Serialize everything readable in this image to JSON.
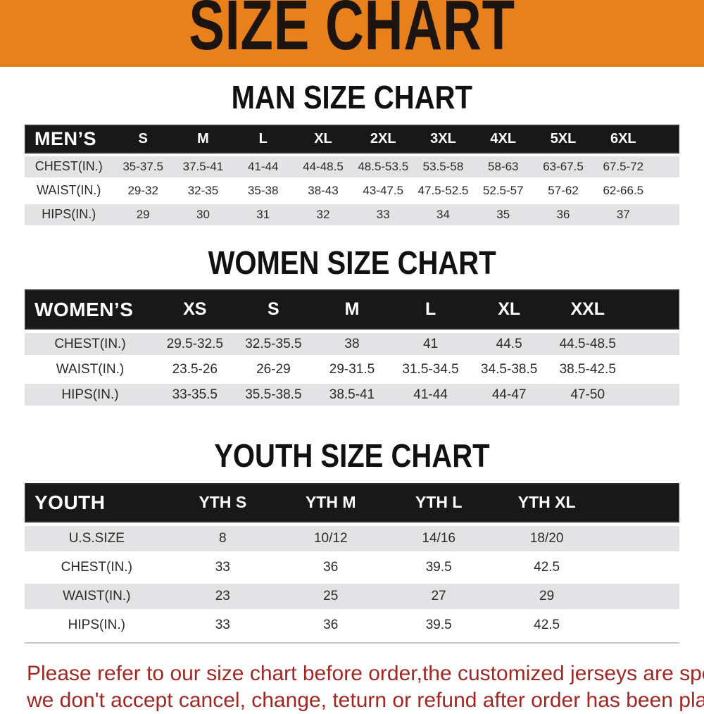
{
  "banner": {
    "title": "SIZE CHART"
  },
  "colors": {
    "banner_bg": "#e8811b",
    "header_bar_bg": "#181818",
    "header_bar_text": "#ffffff",
    "row_alt_bg": "#e3e3e5",
    "notice_text": "#a02823",
    "title_text": "#111111"
  },
  "sections": [
    {
      "id": "men",
      "title": "MAN SIZE CHART",
      "header_label": "MEN’S",
      "columns": [
        "S",
        "M",
        "L",
        "XL",
        "2XL",
        "3XL",
        "4XL",
        "5XL",
        "6XL"
      ],
      "rows": [
        {
          "label": "CHEST(IN.)",
          "values": [
            "35-37.5",
            "37.5-41",
            "41-44",
            "44-48.5",
            "48.5-53.5",
            "53.5-58",
            "58-63",
            "63-67.5",
            "67.5-72"
          ]
        },
        {
          "label": "WAIST(IN.)",
          "values": [
            "29-32",
            "32-35",
            "35-38",
            "38-43",
            "43-47.5",
            "47.5-52.5",
            "52.5-57",
            "57-62",
            "62-66.5"
          ]
        },
        {
          "label": "HIPS(IN.)",
          "values": [
            "29",
            "30",
            "31",
            "32",
            "33",
            "34",
            "35",
            "36",
            "37"
          ]
        }
      ]
    },
    {
      "id": "women",
      "title": "WOMEN SIZE CHART",
      "header_label": "WOMEN’S",
      "columns": [
        "XS",
        "S",
        "M",
        "L",
        "XL",
        "XXL"
      ],
      "rows": [
        {
          "label": "CHEST(IN.)",
          "values": [
            "29.5-32.5",
            "32.5-35.5",
            "38",
            "41",
            "44.5",
            "44.5-48.5"
          ]
        },
        {
          "label": "WAIST(IN.)",
          "values": [
            "23.5-26",
            "26-29",
            "29-31.5",
            "31.5-34.5",
            "34.5-38.5",
            "38.5-42.5"
          ]
        },
        {
          "label": "HIPS(IN.)",
          "values": [
            "33-35.5",
            "35.5-38.5",
            "38.5-41",
            "41-44",
            "44-47",
            "47-50"
          ]
        }
      ]
    },
    {
      "id": "youth",
      "title": "YOUTH SIZE CHART",
      "header_label": "YOUTH",
      "columns": [
        "YTH S",
        "YTH M",
        "YTH L",
        "YTH XL"
      ],
      "rows": [
        {
          "label": "U.S.SIZE",
          "values": [
            "8",
            "10/12",
            "14/16",
            "18/20"
          ]
        },
        {
          "label": "CHEST(IN.)",
          "values": [
            "33",
            "36",
            "39.5",
            "42.5"
          ]
        },
        {
          "label": "WAIST(IN.)",
          "values": [
            "23",
            "25",
            "27",
            "29"
          ]
        },
        {
          "label": "HIPS(IN.)",
          "values": [
            "33",
            "36",
            "39.5",
            "42.5"
          ]
        }
      ]
    }
  ],
  "footer": {
    "line1": "Please refer to our size chart before order,the customized jerseys are special products,",
    "line2": "we don't accept cancel, change, teturn or refund after order has been placed!"
  }
}
